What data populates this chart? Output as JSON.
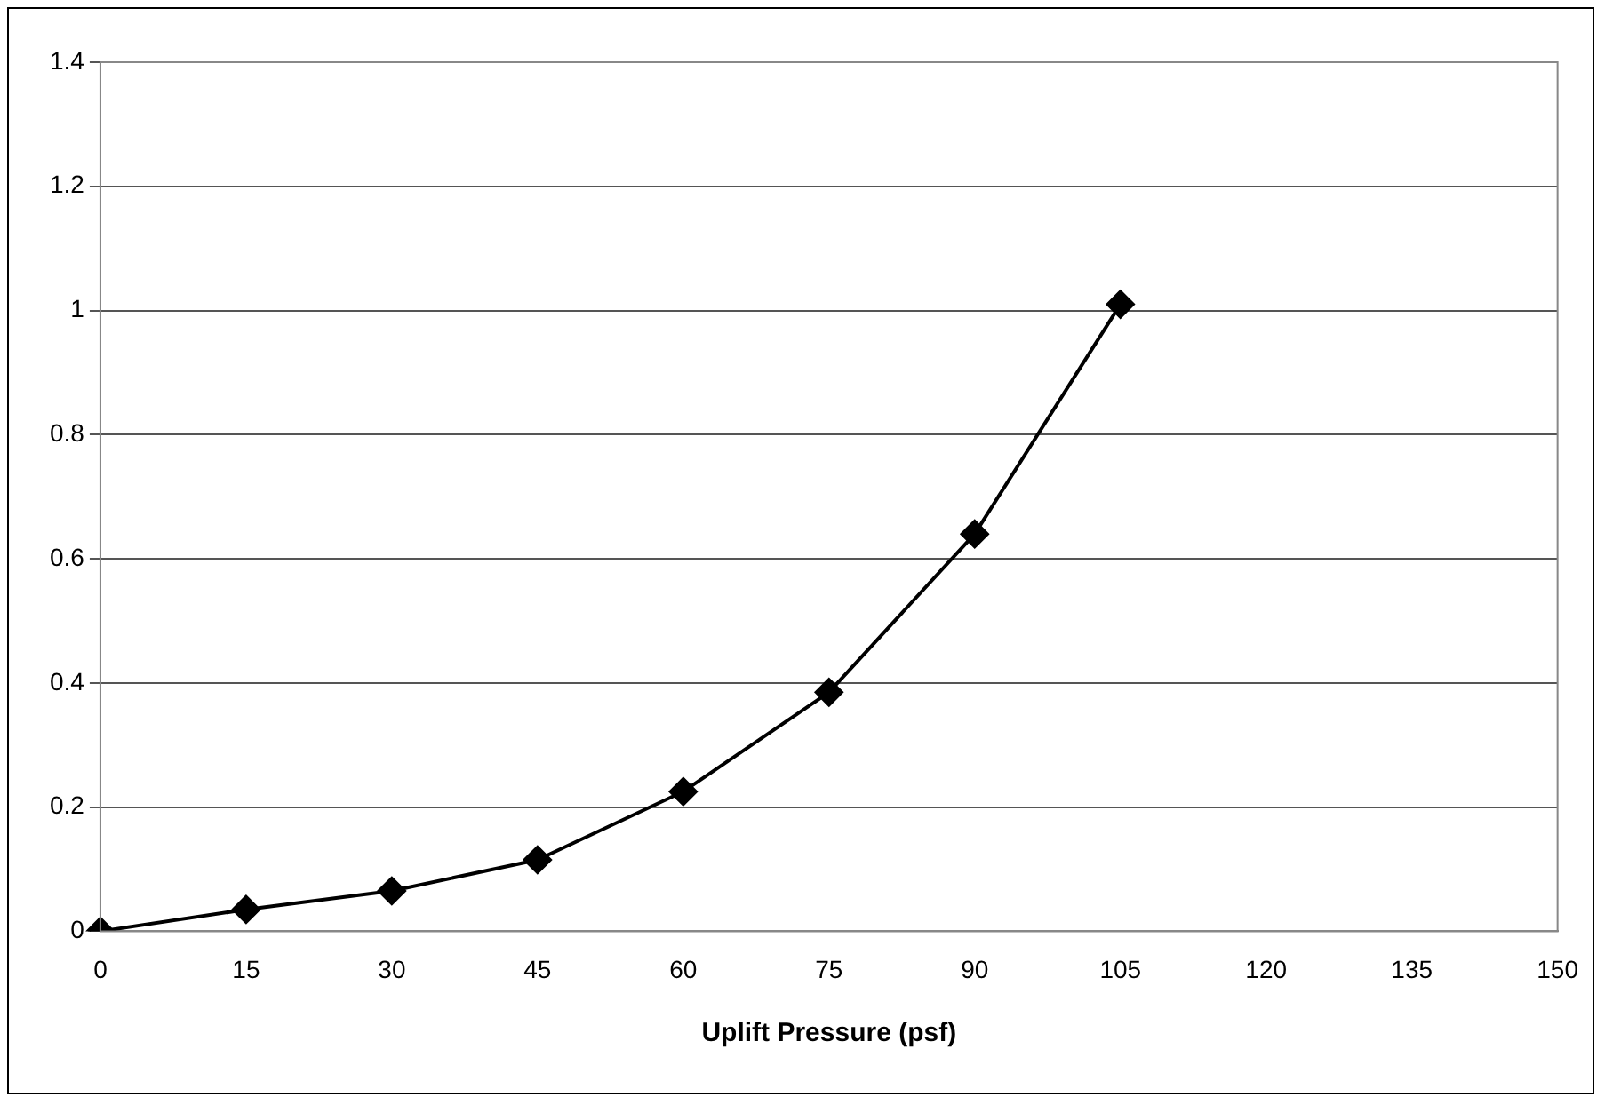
{
  "chart_data": {
    "type": "line",
    "xlabel": "Uplift Pressure (psf)",
    "categories": [
      "0",
      "15",
      "30",
      "45",
      "60",
      "75",
      "90",
      "105",
      "120",
      "135",
      "150"
    ],
    "series": [
      {
        "color": "#000000",
        "values": [
          0,
          0.035,
          0.065,
          0.115,
          0.225,
          0.385,
          0.64,
          1.01,
          null,
          null,
          null
        ]
      }
    ],
    "ylim": [
      0,
      1.4
    ],
    "yticks": [
      0,
      0.2,
      0.4,
      0.6,
      0.8,
      1,
      1.2,
      1.4
    ],
    "grid": "y",
    "legend": false,
    "marker": "diamond",
    "line_style": "solid"
  }
}
